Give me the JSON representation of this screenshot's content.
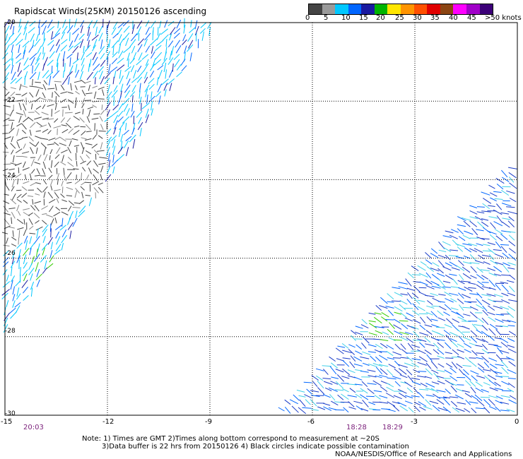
{
  "title": "Rapidscat Winds(25KM) 20150126 ascending",
  "legend": {
    "colors": [
      "#444444",
      "#9a9a9a",
      "#00c8ff",
      "#0066ff",
      "#1a1aa0",
      "#00b400",
      "#ffe600",
      "#ff9400",
      "#ff5000",
      "#e00000",
      "#8b4513",
      "#ff00ff",
      "#a000c8",
      "#3c0078"
    ],
    "labels": [
      "0",
      "5",
      "10",
      "15",
      "20",
      "25",
      "30",
      "35",
      "40",
      "45",
      ">50 knots"
    ]
  },
  "axes": {
    "x_ticks": [
      "-15",
      "-12",
      "-9",
      "-6",
      "-3",
      "0"
    ],
    "y_ticks": [
      "-20",
      "-22",
      "-24",
      "-26",
      "-28",
      "-30"
    ]
  },
  "times": [
    "20:03",
    "18:28",
    "18:29"
  ],
  "notes": [
    "Note: 1) Times are GMT 2)Times along bottom correspond to measurement at ~20S",
    "3)Data buffer is 22 hrs from 20150126 4) Black circles indicate possible contamination",
    "NOAA/NESDIS/Office of Research and Applications"
  ],
  "map_data": {
    "lon_range": [
      -15,
      0
    ],
    "lat_range": [
      -30,
      -20
    ],
    "swaths": [
      {
        "name": "west-swath",
        "polygon_lonlat": [
          [
            -15,
            -20
          ],
          [
            -8.8,
            -20
          ],
          [
            -15,
            -27.9
          ]
        ]
      },
      {
        "name": "east-swath",
        "polygon_lonlat": [
          [
            0,
            -23.5
          ],
          [
            0,
            -30
          ],
          [
            -7.1,
            -30
          ]
        ]
      }
    ],
    "calm_zone_lonlat": [
      [
        -15,
        -21.5
      ],
      [
        -12,
        -21.5
      ],
      [
        -12,
        -24.3
      ],
      [
        -15,
        -25.8
      ]
    ],
    "green_patches_lonlat": [
      [
        -14,
        -26.2
      ],
      [
        -3.8,
        -27.8
      ]
    ]
  }
}
